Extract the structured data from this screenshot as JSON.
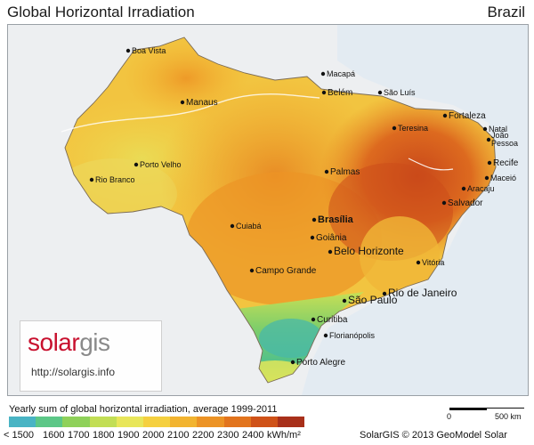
{
  "header": {
    "title": "Global Horizontal Irradiation",
    "country": "Brazil"
  },
  "cities": [
    {
      "name": "Boa Vista"
    },
    {
      "name": "Macapá"
    },
    {
      "name": "Belém"
    },
    {
      "name": "São Luís"
    },
    {
      "name": "Fortaleza"
    },
    {
      "name": "Manaus"
    },
    {
      "name": "Teresina"
    },
    {
      "name": "Natal"
    },
    {
      "name": "João Pessoa"
    },
    {
      "name": "Recife"
    },
    {
      "name": "Porto Velho"
    },
    {
      "name": "Maceió"
    },
    {
      "name": "Rio Branco"
    },
    {
      "name": "Palmas"
    },
    {
      "name": "Aracaju"
    },
    {
      "name": "Salvador"
    },
    {
      "name": "Cuiabá"
    },
    {
      "name": "Brasília"
    },
    {
      "name": "Goiânia"
    },
    {
      "name": "Belo Horizonte"
    },
    {
      "name": "Campo Grande"
    },
    {
      "name": "Vitória"
    },
    {
      "name": "Rio de Janeiro"
    },
    {
      "name": "São Paulo"
    },
    {
      "name": "Curitiba"
    },
    {
      "name": "Florianópolis"
    },
    {
      "name": "Porto Alegre"
    }
  ],
  "logo": {
    "brand_a": "solar",
    "brand_b": "gis",
    "url": "http://solargis.info"
  },
  "legend": {
    "title": "Yearly sum of global horizontal irradiation, average 1999-2011",
    "first_label": "< 1500",
    "labels": [
      "1600",
      "1700",
      "1800",
      "1900",
      "2000",
      "2100",
      "2200",
      "2300",
      "2400"
    ],
    "unit": "kWh/m²",
    "colors": [
      "#49b4c4",
      "#5cc787",
      "#8fd15a",
      "#c2de55",
      "#e8e65a",
      "#f5d040",
      "#f2b430",
      "#ec9325",
      "#e2741d",
      "#cf5218",
      "#a8301a"
    ]
  },
  "scale_bar": {
    "min": "0",
    "max": "500 km"
  },
  "credit": "SolarGIS © 2013 GeoModel Solar"
}
